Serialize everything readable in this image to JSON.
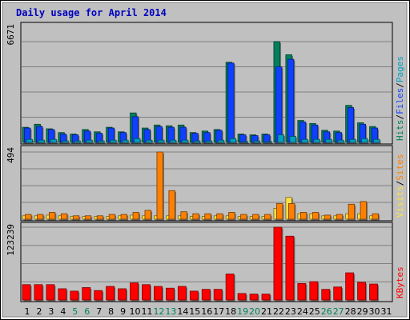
{
  "chart_data": {
    "type": "bar",
    "title": "Daily usage for April 2014",
    "categories": [
      "1",
      "2",
      "3",
      "4",
      "5",
      "6",
      "7",
      "8",
      "9",
      "10",
      "11",
      "12",
      "13",
      "14",
      "15",
      "16",
      "17",
      "18",
      "19",
      "20",
      "21",
      "22",
      "23",
      "24",
      "25",
      "26",
      "27",
      "28",
      "29",
      "30",
      "31"
    ],
    "weekend_days": [
      "5",
      "6",
      "12",
      "13",
      "19",
      "20",
      "26",
      "27"
    ],
    "colors": {
      "pages": "#00a0c0",
      "files": "#1040ff",
      "hits": "#00805c",
      "sites": "#ff8000",
      "visits": "#ffe040",
      "kbytes": "#ff0000",
      "weekend": "#00805c",
      "weekday": "#000000",
      "title": "#0000c0",
      "panel_bg": "#c0c0c0",
      "gridline": "#808080"
    },
    "panels": [
      {
        "id": "hits-files-pages",
        "max_label": "6671",
        "ylim": [
          0,
          6671
        ],
        "legend": [
          {
            "text": "Hits",
            "color": "#00805c"
          },
          {
            "text": "Files",
            "color": "#1040ff"
          },
          {
            "text": "Pages",
            "color": "#00a0c0"
          }
        ],
        "series": [
          {
            "key": "hits",
            "values": [
              1000,
              1200,
              900,
              650,
              550,
              850,
              700,
              1000,
              700,
              1950,
              950,
              1150,
              1100,
              1150,
              650,
              750,
              850,
              5300,
              550,
              500,
              550,
              6671,
              5800,
              1450,
              1250,
              800,
              750,
              2450,
              1300,
              1050,
              0
            ]
          },
          {
            "key": "files",
            "values": [
              950,
              1050,
              850,
              550,
              500,
              750,
              600,
              950,
              650,
              1700,
              850,
              1050,
              1000,
              1000,
              600,
              650,
              800,
              5250,
              500,
              450,
              500,
              5000,
              5500,
              1350,
              1150,
              700,
              650,
              2300,
              1200,
              950,
              0
            ]
          },
          {
            "key": "pages",
            "values": [
              200,
              150,
              200,
              100,
              100,
              150,
              100,
              150,
              150,
              250,
              150,
              150,
              150,
              150,
              100,
              100,
              150,
              250,
              50,
              100,
              50,
              500,
              400,
              200,
              200,
              200,
              150,
              200,
              250,
              200,
              0
            ]
          }
        ]
      },
      {
        "id": "visits-sites",
        "max_label": "494",
        "ylim": [
          0,
          494
        ],
        "legend": [
          {
            "text": "Visits",
            "color": "#ffe040"
          },
          {
            "text": "Sites",
            "color": "#ff8000"
          }
        ],
        "series": [
          {
            "key": "visits",
            "values": [
              25,
              25,
              30,
              25,
              20,
              20,
              20,
              20,
              25,
              30,
              25,
              25,
              25,
              25,
              20,
              20,
              25,
              25,
              20,
              20,
              20,
              80,
              160,
              40,
              40,
              25,
              25,
              40,
              40,
              25,
              0
            ]
          },
          {
            "key": "sites",
            "values": [
              35,
              35,
              50,
              40,
              25,
              25,
              25,
              35,
              35,
              50,
              65,
              494,
              210,
              55,
              40,
              40,
              40,
              50,
              35,
              35,
              35,
              115,
              115,
              50,
              50,
              30,
              35,
              110,
              130,
              40,
              0
            ]
          }
        ]
      },
      {
        "id": "kbytes",
        "max_label": "123239",
        "ylim": [
          0,
          123239
        ],
        "legend": [
          {
            "text": "KBytes",
            "color": "#ff0000"
          }
        ],
        "series": [
          {
            "key": "kbytes",
            "values": [
              26000,
              26000,
              26000,
              19000,
              15000,
              21000,
              16000,
              23000,
              19000,
              29000,
              26000,
              23000,
              20000,
              23000,
              15000,
              18000,
              18000,
              44000,
              11000,
              10000,
              10000,
              123239,
              108000,
              28000,
              31000,
              18000,
              22000,
              46000,
              30000,
              27000,
              0
            ]
          }
        ]
      }
    ]
  }
}
